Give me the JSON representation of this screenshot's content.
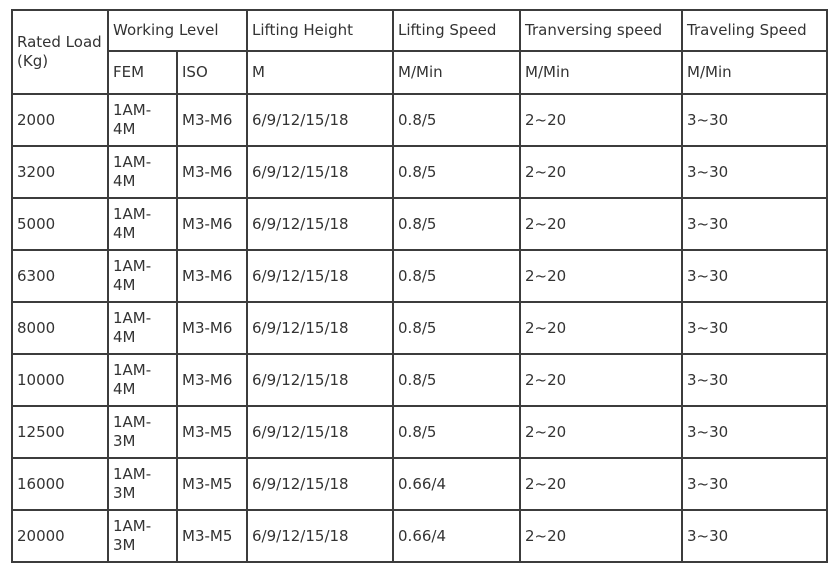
{
  "colors": {
    "background": "#ffffff",
    "border": "#3c3c3c",
    "text": "#333333"
  },
  "table": {
    "header": {
      "rated_load": "Rated Load (Kg)",
      "working_level": "Working Level",
      "fem": "FEM",
      "iso": "ISO",
      "lifting_height": "Lifting Height",
      "lifting_speed": "Lifting Speed",
      "tranversing_speed": "Tranversing speed",
      "traveling_speed": "Traveling Speed",
      "unit_m": "M",
      "unit_m_min": "M/Min"
    },
    "rows": [
      {
        "rated_load": "2000",
        "fem": "1AM-4M",
        "iso": "M3-M6",
        "lifting_height": "6/9/12/15/18",
        "lifting_speed": "0.8/5",
        "tranversing_speed": "2~20",
        "traveling_speed": "3~30"
      },
      {
        "rated_load": "3200",
        "fem": "1AM-4M",
        "iso": "M3-M6",
        "lifting_height": "6/9/12/15/18",
        "lifting_speed": "0.8/5",
        "tranversing_speed": "2~20",
        "traveling_speed": "3~30"
      },
      {
        "rated_load": "5000",
        "fem": "1AM-4M",
        "iso": "M3-M6",
        "lifting_height": "6/9/12/15/18",
        "lifting_speed": "0.8/5",
        "tranversing_speed": "2~20",
        "traveling_speed": "3~30"
      },
      {
        "rated_load": "6300",
        "fem": "1AM-4M",
        "iso": "M3-M6",
        "lifting_height": "6/9/12/15/18",
        "lifting_speed": "0.8/5",
        "tranversing_speed": "2~20",
        "traveling_speed": "3~30"
      },
      {
        "rated_load": "8000",
        "fem": "1AM-4M",
        "iso": "M3-M6",
        "lifting_height": "6/9/12/15/18",
        "lifting_speed": "0.8/5",
        "tranversing_speed": "2~20",
        "traveling_speed": "3~30"
      },
      {
        "rated_load": "10000",
        "fem": "1AM-4M",
        "iso": "M3-M6",
        "lifting_height": "6/9/12/15/18",
        "lifting_speed": "0.8/5",
        "tranversing_speed": "2~20",
        "traveling_speed": "3~30"
      },
      {
        "rated_load": "12500",
        "fem": "1AM-3M",
        "iso": "M3-M5",
        "lifting_height": "6/9/12/15/18",
        "lifting_speed": "0.8/5",
        "tranversing_speed": "2~20",
        "traveling_speed": "3~30"
      },
      {
        "rated_load": "16000",
        "fem": "1AM-3M",
        "iso": "M3-M5",
        "lifting_height": "6/9/12/15/18",
        "lifting_speed": "0.66/4",
        "tranversing_speed": "2~20",
        "traveling_speed": "3~30"
      },
      {
        "rated_load": "20000",
        "fem": "1AM-3M",
        "iso": "M3-M5",
        "lifting_height": "6/9/12/15/18",
        "lifting_speed": "0.66/4",
        "tranversing_speed": "2~20",
        "traveling_speed": "3~30"
      }
    ]
  }
}
